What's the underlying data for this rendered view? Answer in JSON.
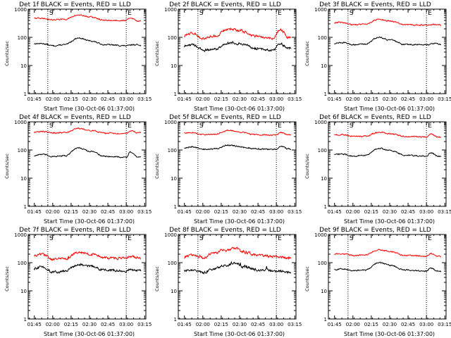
{
  "figure": {
    "ylabel": "Counts/sec",
    "xlabel": "Start Time (30-Oct-06 01:37:00)",
    "markers": [
      "S",
      "E"
    ]
  },
  "colors": {
    "events": "#000000",
    "lld": "#ff0000"
  },
  "chart_data": [
    {
      "type": "line",
      "title": "Det 1f BLACK = Events, RED = LLD",
      "xlabel": "Start Time (30-Oct-06 01:37:00)",
      "ylabel": "Counts/sec",
      "yscale": "log",
      "ylim": [
        1,
        1000
      ],
      "yticks": [
        "1",
        "10",
        "100",
        "1000"
      ],
      "xticks": [
        "01:45",
        "02:00",
        "02:15",
        "02:30",
        "02:45",
        "03:00",
        "03:15"
      ],
      "vlines": [
        "01:56",
        "03:00"
      ],
      "series": [
        {
          "key": "events",
          "color": "black",
          "base": [
            [
              1.7,
              60
            ],
            [
              1.85,
              60
            ],
            [
              2.0,
              50
            ],
            [
              2.17,
              55
            ],
            [
              2.35,
              95
            ],
            [
              2.5,
              75
            ],
            [
              2.7,
              55
            ],
            [
              3.0,
              50
            ],
            [
              3.1,
              55
            ],
            [
              3.25,
              52
            ]
          ]
        },
        {
          "key": "lld",
          "color": "red",
          "base": [
            [
              1.7,
              480
            ],
            [
              1.85,
              470
            ],
            [
              2.0,
              420
            ],
            [
              2.17,
              440
            ],
            [
              2.35,
              620
            ],
            [
              2.5,
              530
            ],
            [
              2.7,
              400
            ],
            [
              3.0,
              400
            ],
            [
              3.05,
              500
            ],
            [
              3.15,
              380
            ],
            [
              3.25,
              420
            ]
          ]
        }
      ]
    },
    {
      "type": "line",
      "title": "Det 2f BLACK = Events, RED = LLD",
      "xlabel": "Start Time (30-Oct-06 01:37:00)",
      "ylabel": "Counts/sec",
      "yscale": "log",
      "ylim": [
        1,
        1000
      ],
      "yticks": [
        "1",
        "10",
        "100",
        "1000"
      ],
      "xticks": [
        "01:45",
        "02:00",
        "02:15",
        "02:30",
        "02:45",
        "03:00",
        "03:15"
      ],
      "vlines": [
        "01:56",
        "03:00"
      ],
      "series": [
        {
          "key": "events",
          "color": "black",
          "base": [
            [
              1.7,
              45
            ],
            [
              1.85,
              55
            ],
            [
              2.0,
              35
            ],
            [
              2.17,
              38
            ],
            [
              2.35,
              65
            ],
            [
              2.5,
              60
            ],
            [
              2.7,
              40
            ],
            [
              2.95,
              35
            ],
            [
              3.05,
              60
            ],
            [
              3.15,
              40
            ],
            [
              3.25,
              45
            ]
          ]
        },
        {
          "key": "lld",
          "color": "red",
          "base": [
            [
              1.7,
              100
            ],
            [
              1.85,
              140
            ],
            [
              2.0,
              90
            ],
            [
              2.17,
              110
            ],
            [
              2.35,
              200
            ],
            [
              2.5,
              170
            ],
            [
              2.7,
              110
            ],
            [
              2.95,
              90
            ],
            [
              3.05,
              190
            ],
            [
              3.15,
              100
            ],
            [
              3.25,
              100
            ]
          ]
        }
      ]
    },
    {
      "type": "line",
      "title": "Det 3f BLACK = Events, RED = LLD",
      "xlabel": "Start Time (30-Oct-06 01:37:00)",
      "ylabel": "Counts/sec",
      "yscale": "log",
      "ylim": [
        1,
        1000
      ],
      "yticks": [
        "1",
        "10",
        "100",
        "1000"
      ],
      "xticks": [
        "01:45",
        "02:00",
        "02:15",
        "02:30",
        "02:45",
        "03:00",
        "03:15"
      ],
      "vlines": [
        "01:56",
        "03:00"
      ],
      "series": [
        {
          "key": "events",
          "color": "black",
          "base": [
            [
              1.7,
              60
            ],
            [
              1.85,
              65
            ],
            [
              2.0,
              55
            ],
            [
              2.17,
              58
            ],
            [
              2.35,
              100
            ],
            [
              2.5,
              80
            ],
            [
              2.7,
              55
            ],
            [
              3.0,
              55
            ],
            [
              3.1,
              60
            ],
            [
              3.25,
              52
            ]
          ]
        },
        {
          "key": "lld",
          "color": "red",
          "base": [
            [
              1.7,
              330
            ],
            [
              1.85,
              340
            ],
            [
              2.0,
              280
            ],
            [
              2.17,
              300
            ],
            [
              2.35,
              430
            ],
            [
              2.5,
              380
            ],
            [
              2.7,
              280
            ],
            [
              3.0,
              270
            ],
            [
              3.1,
              290
            ],
            [
              3.25,
              260
            ]
          ]
        }
      ]
    },
    {
      "type": "line",
      "title": "Det 4f BLACK = Events, RED = LLD",
      "xlabel": "Start Time (30-Oct-06 01:37:00)",
      "ylabel": "Counts/sec",
      "yscale": "log",
      "ylim": [
        1,
        1000
      ],
      "yticks": [
        "1",
        "10",
        "100",
        "1000"
      ],
      "xticks": [
        "01:45",
        "02:00",
        "02:15",
        "02:30",
        "02:45",
        "03:00",
        "03:15"
      ],
      "vlines": [
        "01:56",
        "03:00"
      ],
      "series": [
        {
          "key": "events",
          "color": "black",
          "base": [
            [
              1.7,
              60
            ],
            [
              1.85,
              70
            ],
            [
              2.0,
              58
            ],
            [
              2.17,
              62
            ],
            [
              2.35,
              120
            ],
            [
              2.5,
              90
            ],
            [
              2.7,
              60
            ],
            [
              3.0,
              55
            ],
            [
              3.05,
              85
            ],
            [
              3.15,
              55
            ],
            [
              3.25,
              55
            ]
          ]
        },
        {
          "key": "lld",
          "color": "red",
          "base": [
            [
              1.7,
              420
            ],
            [
              1.85,
              460
            ],
            [
              2.0,
              400
            ],
            [
              2.17,
              420
            ],
            [
              2.35,
              580
            ],
            [
              2.5,
              500
            ],
            [
              2.7,
              400
            ],
            [
              3.0,
              390
            ],
            [
              3.05,
              470
            ],
            [
              3.15,
              410
            ],
            [
              3.25,
              420
            ]
          ]
        }
      ]
    },
    {
      "type": "line",
      "title": "Det 5f BLACK = Events, RED = LLD",
      "xlabel": "Start Time (30-Oct-06 01:37:00)",
      "ylabel": "Counts/sec",
      "yscale": "log",
      "ylim": [
        1,
        1000
      ],
      "yticks": [
        "1",
        "10",
        "100",
        "1000"
      ],
      "xticks": [
        "01:45",
        "02:00",
        "02:15",
        "02:30",
        "02:45",
        "03:00",
        "03:15"
      ],
      "vlines": [
        "01:56",
        "03:00"
      ],
      "series": [
        {
          "key": "events",
          "color": "black",
          "base": [
            [
              1.7,
              110
            ],
            [
              1.85,
              130
            ],
            [
              2.0,
              105
            ],
            [
              2.17,
              110
            ],
            [
              2.35,
              150
            ],
            [
              2.5,
              130
            ],
            [
              2.7,
              110
            ],
            [
              3.0,
              105
            ],
            [
              3.05,
              140
            ],
            [
              3.15,
              110
            ],
            [
              3.25,
              105
            ]
          ]
        },
        {
          "key": "lld",
          "color": "red",
          "base": [
            [
              1.7,
              380
            ],
            [
              1.85,
              420
            ],
            [
              2.0,
              350
            ],
            [
              2.17,
              370
            ],
            [
              2.35,
              500
            ],
            [
              2.5,
              430
            ],
            [
              2.7,
              350
            ],
            [
              3.0,
              340
            ],
            [
              3.05,
              420
            ],
            [
              3.15,
              350
            ],
            [
              3.25,
              340
            ]
          ]
        }
      ]
    },
    {
      "type": "line",
      "title": "Det 6f BLACK = Events, RED = LLD",
      "xlabel": "Start Time (30-Oct-06 01:37:00)",
      "ylabel": "Counts/sec",
      "yscale": "log",
      "ylim": [
        1,
        1000
      ],
      "yticks": [
        "1",
        "10",
        "100",
        "1000"
      ],
      "xticks": [
        "01:45",
        "02:00",
        "02:15",
        "02:30",
        "02:45",
        "03:00",
        "03:15"
      ],
      "vlines": [
        "01:56",
        "03:00"
      ],
      "series": [
        {
          "key": "events",
          "color": "black",
          "base": [
            [
              1.7,
              65
            ],
            [
              1.85,
              72
            ],
            [
              2.0,
              60
            ],
            [
              2.17,
              65
            ],
            [
              2.35,
              115
            ],
            [
              2.5,
              95
            ],
            [
              2.7,
              65
            ],
            [
              3.0,
              60
            ],
            [
              3.05,
              80
            ],
            [
              3.15,
              60
            ],
            [
              3.25,
              58
            ]
          ]
        },
        {
          "key": "lld",
          "color": "red",
          "base": [
            [
              1.7,
              330
            ],
            [
              1.85,
              350
            ],
            [
              2.0,
              300
            ],
            [
              2.17,
              310
            ],
            [
              2.35,
              430
            ],
            [
              2.5,
              380
            ],
            [
              2.7,
              300
            ],
            [
              3.0,
              290
            ],
            [
              3.05,
              370
            ],
            [
              3.15,
              290
            ],
            [
              3.25,
              280
            ]
          ]
        }
      ]
    },
    {
      "type": "line",
      "title": "Det 7f BLACK = Events, RED = LLD",
      "xlabel": "Start Time (30-Oct-06 01:37:00)",
      "ylabel": "Counts/sec",
      "yscale": "log",
      "ylim": [
        1,
        1000
      ],
      "yticks": [
        "1",
        "10",
        "100",
        "1000"
      ],
      "xticks": [
        "01:45",
        "02:00",
        "02:15",
        "02:30",
        "02:45",
        "03:00",
        "03:15"
      ],
      "vlines": [
        "01:56",
        "03:00"
      ],
      "series": [
        {
          "key": "events",
          "color": "black",
          "base": [
            [
              1.7,
              55
            ],
            [
              1.85,
              70
            ],
            [
              2.0,
              45
            ],
            [
              2.17,
              50
            ],
            [
              2.35,
              85
            ],
            [
              2.5,
              75
            ],
            [
              2.7,
              55
            ],
            [
              2.95,
              50
            ],
            [
              3.05,
              55
            ],
            [
              3.25,
              50
            ]
          ]
        },
        {
          "key": "lld",
          "color": "red",
          "base": [
            [
              1.7,
              160
            ],
            [
              1.85,
              200
            ],
            [
              2.0,
              130
            ],
            [
              2.17,
              140
            ],
            [
              2.35,
              230
            ],
            [
              2.5,
              200
            ],
            [
              2.7,
              150
            ],
            [
              2.95,
              140
            ],
            [
              3.05,
              160
            ],
            [
              3.25,
              140
            ]
          ]
        }
      ]
    },
    {
      "type": "line",
      "title": "Det 8f BLACK = Events, RED = LLD",
      "xlabel": "Start Time (30-Oct-06 01:37:00)",
      "ylabel": "Counts/sec",
      "yscale": "log",
      "ylim": [
        1,
        1000
      ],
      "yticks": [
        "1",
        "10",
        "100",
        "1000"
      ],
      "xticks": [
        "01:45",
        "02:00",
        "02:15",
        "02:30",
        "02:45",
        "03:00",
        "03:15"
      ],
      "vlines": [
        "01:56",
        "03:00"
      ],
      "series": [
        {
          "key": "events",
          "color": "black",
          "base": [
            [
              1.7,
              50
            ],
            [
              1.85,
              55
            ],
            [
              2.0,
              45
            ],
            [
              2.15,
              60
            ],
            [
              2.3,
              80
            ],
            [
              2.45,
              95
            ],
            [
              2.55,
              70
            ],
            [
              2.75,
              55
            ],
            [
              3.0,
              50
            ],
            [
              3.25,
              45
            ]
          ]
        },
        {
          "key": "lld",
          "color": "red",
          "base": [
            [
              1.7,
              160
            ],
            [
              1.85,
              180
            ],
            [
              2.0,
              150
            ],
            [
              2.15,
              220
            ],
            [
              2.3,
              280
            ],
            [
              2.45,
              320
            ],
            [
              2.55,
              230
            ],
            [
              2.75,
              180
            ],
            [
              3.0,
              160
            ],
            [
              3.25,
              140
            ]
          ]
        }
      ]
    },
    {
      "type": "line",
      "title": "Det 9f BLACK = Events, RED = LLD",
      "xlabel": "Start Time (30-Oct-06 01:37:00)",
      "ylabel": "Counts/sec",
      "yscale": "log",
      "ylim": [
        1,
        1000
      ],
      "yticks": [
        "1",
        "10",
        "100",
        "1000"
      ],
      "xticks": [
        "01:45",
        "02:00",
        "02:15",
        "02:30",
        "02:45",
        "03:00",
        "03:15"
      ],
      "vlines": [
        "01:56",
        "03:00"
      ],
      "series": [
        {
          "key": "events",
          "color": "black",
          "base": [
            [
              1.7,
              55
            ],
            [
              1.85,
              60
            ],
            [
              2.0,
              52
            ],
            [
              2.17,
              55
            ],
            [
              2.35,
              100
            ],
            [
              2.5,
              80
            ],
            [
              2.7,
              55
            ],
            [
              3.0,
              50
            ],
            [
              3.05,
              65
            ],
            [
              3.15,
              50
            ],
            [
              3.25,
              48
            ]
          ]
        },
        {
          "key": "lld",
          "color": "red",
          "base": [
            [
              1.7,
              200
            ],
            [
              1.85,
              210
            ],
            [
              2.0,
              180
            ],
            [
              2.17,
              190
            ],
            [
              2.35,
              290
            ],
            [
              2.5,
              250
            ],
            [
              2.7,
              180
            ],
            [
              3.0,
              170
            ],
            [
              3.05,
              210
            ],
            [
              3.15,
              170
            ],
            [
              3.25,
              165
            ]
          ]
        }
      ]
    }
  ]
}
